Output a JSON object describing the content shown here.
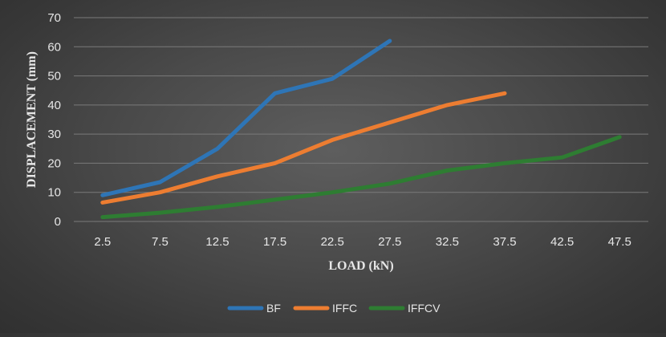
{
  "chart_data": {
    "type": "line",
    "title": "",
    "xlabel": "LOAD (kN)",
    "ylabel": "DISPLACEMENT (mm)",
    "categories": [
      "2.5",
      "7.5",
      "12.5",
      "17.5",
      "22.5",
      "27.5",
      "32.5",
      "37.5",
      "42.5",
      "47.5"
    ],
    "ylim": [
      0,
      70
    ],
    "yticks": [
      "0",
      "10",
      "20",
      "30",
      "40",
      "50",
      "60",
      "70"
    ],
    "grid": true,
    "legend_position": "bottom",
    "series": [
      {
        "name": "BF",
        "color": "#2e75b6",
        "values": [
          9,
          13.5,
          25,
          44,
          49,
          62,
          null,
          null,
          null,
          null
        ]
      },
      {
        "name": "IFFC",
        "color": "#ed7d31",
        "values": [
          6.5,
          10,
          15.5,
          20,
          28,
          34,
          40,
          44,
          null,
          null
        ]
      },
      {
        "name": "IFFCV",
        "color": "#2e7d32",
        "values": [
          1.5,
          3,
          5,
          7.5,
          10,
          13,
          17.5,
          20,
          22,
          29
        ]
      }
    ]
  }
}
